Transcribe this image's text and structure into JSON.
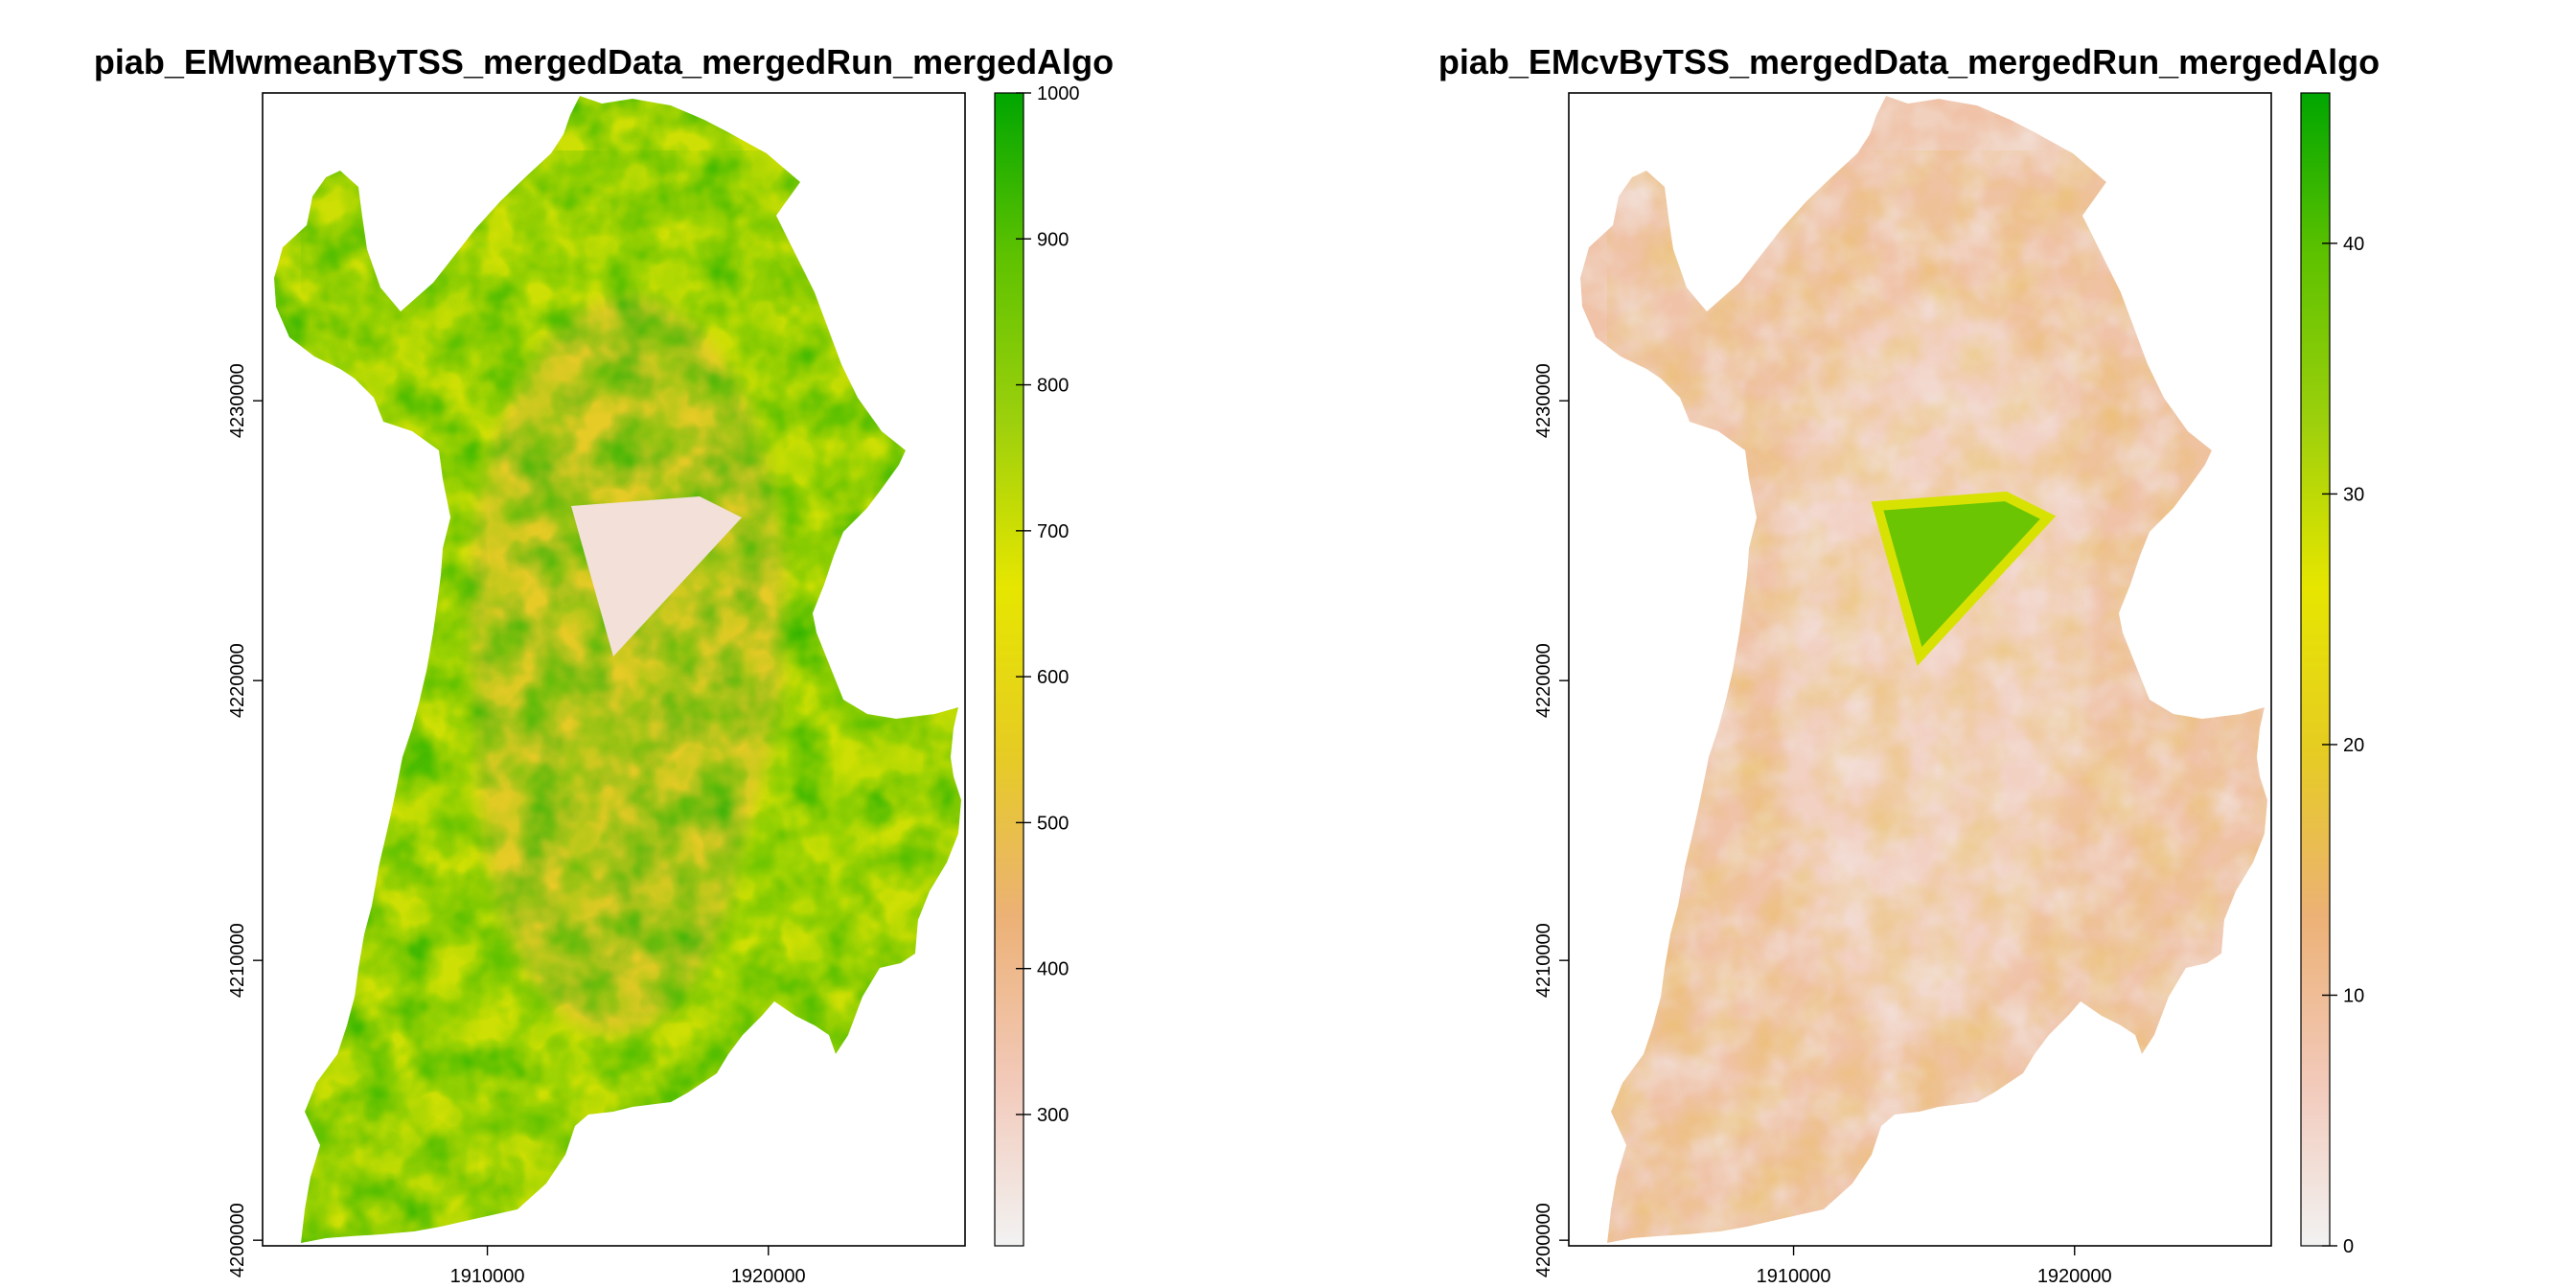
{
  "chart_data": [
    {
      "type": "heatmap",
      "title": "piab_EMwmeanByTSS_mergedData_mergedRun_mergedAlgo",
      "x_ticks": [
        1910000,
        1920000
      ],
      "y_ticks": [
        4200000,
        4210000,
        4220000,
        4230000
      ],
      "xlim": [
        1902000,
        1927000
      ],
      "ylim": [
        4199800,
        4241000
      ],
      "legend": {
        "range": [
          210,
          1000
        ],
        "ticks": [
          300,
          400,
          500,
          600,
          700,
          800,
          900,
          1000
        ],
        "position": "right"
      },
      "pattern": "ridge",
      "high_region_value": 260,
      "colormap": [
        "#f2f2f2",
        "#f2c9b9",
        "#ecb176",
        "#e6cc22",
        "#e6e600",
        "#9dd00c",
        "#5fc200",
        "#00a600"
      ]
    },
    {
      "type": "heatmap",
      "title": "piab_EMcvByTSS_mergedData_mergedRun_mergedAlgo",
      "x_ticks": [
        1910000,
        1920000
      ],
      "y_ticks": [
        4200000,
        4210000,
        4220000,
        4230000
      ],
      "xlim": [
        1902000,
        1927000
      ],
      "ylim": [
        4199800,
        4241000
      ],
      "legend": {
        "range": [
          0,
          46
        ],
        "ticks": [
          0,
          10,
          20,
          30,
          40
        ],
        "position": "right"
      },
      "pattern": "low",
      "high_region_value": 38,
      "colormap": [
        "#f2f2f2",
        "#f2c9b9",
        "#ecb176",
        "#e6cc22",
        "#e6e600",
        "#9dd00c",
        "#5fc200",
        "#00a600"
      ]
    }
  ]
}
